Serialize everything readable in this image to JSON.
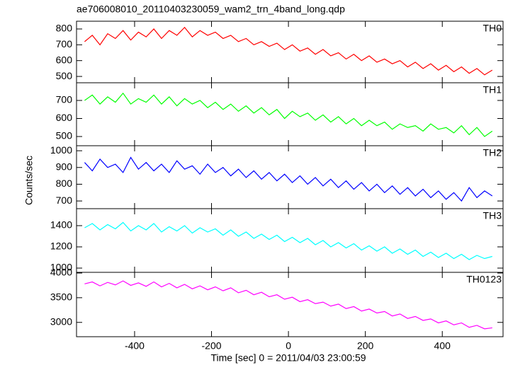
{
  "chart_data": {
    "type": "line",
    "title": "ae706008010_20110403230059_wam2_trn_4band_long.qdp",
    "xlabel": "Time [sec] 0 = 2011/04/03 23:00:59",
    "ylabel": "Counts/sec",
    "xlim": [
      -551,
      558
    ],
    "xticks": [
      -400,
      -200,
      0,
      200,
      400
    ],
    "x": [
      -530,
      -510,
      -490,
      -470,
      -450,
      -430,
      -410,
      -390,
      -370,
      -350,
      -330,
      -310,
      -290,
      -270,
      -250,
      -230,
      -210,
      -190,
      -170,
      -150,
      -130,
      -110,
      -90,
      -70,
      -50,
      -30,
      -10,
      10,
      30,
      50,
      70,
      90,
      110,
      130,
      150,
      170,
      190,
      210,
      230,
      250,
      270,
      290,
      310,
      330,
      350,
      370,
      390,
      410,
      430,
      450,
      470,
      490,
      510,
      530
    ],
    "panels": [
      {
        "name": "TH0",
        "color": "#ff0000",
        "ylim": [
          460,
          849
        ],
        "yticks": [
          500,
          600,
          700,
          800
        ],
        "values": [
          720,
          760,
          700,
          770,
          740,
          790,
          730,
          780,
          750,
          800,
          740,
          790,
          760,
          810,
          750,
          790,
          760,
          780,
          740,
          760,
          720,
          740,
          700,
          720,
          690,
          710,
          670,
          700,
          660,
          680,
          640,
          670,
          630,
          650,
          610,
          640,
          600,
          630,
          590,
          610,
          580,
          600,
          560,
          590,
          550,
          580,
          540,
          570,
          530,
          560,
          520,
          550,
          510,
          540
        ]
      },
      {
        "name": "TH1",
        "color": "#00ff00",
        "ylim": [
          449,
          798
        ],
        "yticks": [
          500,
          600,
          700
        ],
        "values": [
          700,
          730,
          680,
          720,
          690,
          740,
          680,
          710,
          690,
          730,
          680,
          720,
          670,
          710,
          680,
          700,
          660,
          690,
          650,
          680,
          640,
          670,
          630,
          660,
          620,
          650,
          600,
          640,
          610,
          630,
          590,
          620,
          580,
          610,
          570,
          600,
          560,
          590,
          560,
          580,
          540,
          570,
          550,
          560,
          530,
          570,
          540,
          550,
          520,
          560,
          510,
          550,
          500,
          530
        ]
      },
      {
        "name": "TH2",
        "color": "#0000ff",
        "ylim": [
          654,
          1030
        ],
        "yticks": [
          700,
          800,
          900,
          1000
        ],
        "values": [
          930,
          880,
          950,
          900,
          920,
          870,
          960,
          890,
          930,
          880,
          920,
          870,
          940,
          890,
          910,
          860,
          920,
          870,
          900,
          850,
          890,
          840,
          880,
          830,
          870,
          820,
          860,
          810,
          850,
          800,
          840,
          790,
          830,
          780,
          820,
          770,
          810,
          760,
          800,
          750,
          790,
          740,
          780,
          730,
          770,
          720,
          760,
          710,
          750,
          700,
          780,
          720,
          760,
          730
        ]
      },
      {
        "name": "TH3",
        "color": "#00ffff",
        "ylim": [
          960,
          1560
        ],
        "yticks": [
          1000,
          1200,
          1400
        ],
        "values": [
          1380,
          1420,
          1360,
          1410,
          1370,
          1430,
          1350,
          1400,
          1360,
          1420,
          1340,
          1390,
          1350,
          1400,
          1330,
          1380,
          1340,
          1370,
          1310,
          1360,
          1300,
          1340,
          1280,
          1320,
          1270,
          1310,
          1250,
          1290,
          1240,
          1280,
          1220,
          1260,
          1200,
          1240,
          1190,
          1230,
          1170,
          1210,
          1160,
          1200,
          1140,
          1180,
          1130,
          1170,
          1110,
          1150,
          1100,
          1140,
          1090,
          1130,
          1080,
          1120,
          1090,
          1110
        ]
      },
      {
        "name": "TH0123",
        "color": "#ff00ff",
        "ylim": [
          2710,
          4014
        ],
        "yticks": [
          3000,
          3500,
          4000
        ],
        "values": [
          3780,
          3820,
          3740,
          3810,
          3760,
          3840,
          3750,
          3800,
          3730,
          3820,
          3720,
          3790,
          3700,
          3770,
          3680,
          3740,
          3660,
          3720,
          3640,
          3700,
          3600,
          3650,
          3560,
          3610,
          3520,
          3560,
          3470,
          3510,
          3420,
          3460,
          3380,
          3410,
          3330,
          3370,
          3280,
          3320,
          3230,
          3270,
          3190,
          3220,
          3130,
          3170,
          3080,
          3120,
          3040,
          3070,
          2990,
          3030,
          2950,
          2990,
          2900,
          2940,
          2870,
          2890
        ]
      }
    ]
  }
}
